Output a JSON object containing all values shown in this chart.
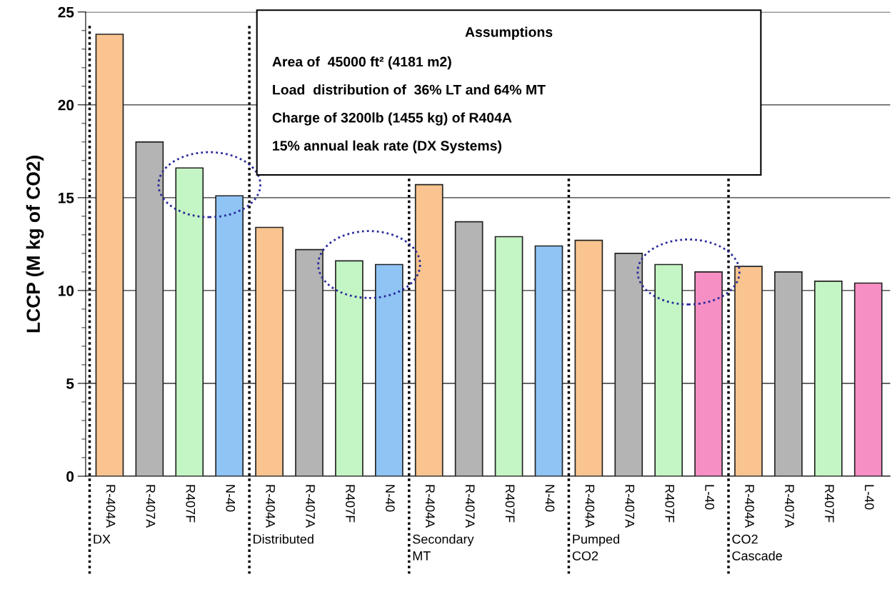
{
  "chart_data": {
    "type": "bar",
    "ylabel": "LCCP (M kg of CO2)",
    "categories": [
      "R-404A",
      "R-407A",
      "R407F",
      "N-40",
      "R-404A",
      "R-407A",
      "R407F",
      "N-40",
      "R-404A",
      "R-407A",
      "R407F",
      "N-40",
      "R-404A",
      "R-407A",
      "R407F",
      "L-40",
      "R-404A",
      "R-407A",
      "R407F",
      "L-40"
    ],
    "values": [
      23.8,
      18.0,
      16.6,
      15.1,
      13.4,
      12.2,
      11.6,
      11.4,
      15.7,
      13.7,
      12.9,
      12.4,
      12.7,
      12.0,
      11.4,
      11.0,
      11.3,
      11.0,
      10.5,
      10.4
    ],
    "colors": [
      "#f9c48f",
      "#b4b4b4",
      "#c4f5c4",
      "#8fc4f5",
      "#f9c48f",
      "#b4b4b4",
      "#c4f5c4",
      "#8fc4f5",
      "#f9c48f",
      "#b4b4b4",
      "#c4f5c4",
      "#8fc4f5",
      "#f9c48f",
      "#b4b4b4",
      "#c4f5c4",
      "#f58fc4",
      "#f9c48f",
      "#b4b4b4",
      "#c4f5c4",
      "#f58fc4"
    ],
    "ylim": [
      0,
      25
    ],
    "yticks": [
      0,
      5,
      10,
      15,
      20,
      25
    ],
    "grid": "y",
    "annotations": [
      "DX",
      "Distributed",
      "Secondary\nMT",
      "Pumped\nCO2",
      "CO2\nCascade",
      "Assumptions\nArea of  45000 ft² (4181 m2)\nLoad  distribution of  36% LT and 64% MT\nCharge of 3200lb (1455 kg) of R404A\n15% annual leak rate (DX Systems)"
    ]
  }
}
